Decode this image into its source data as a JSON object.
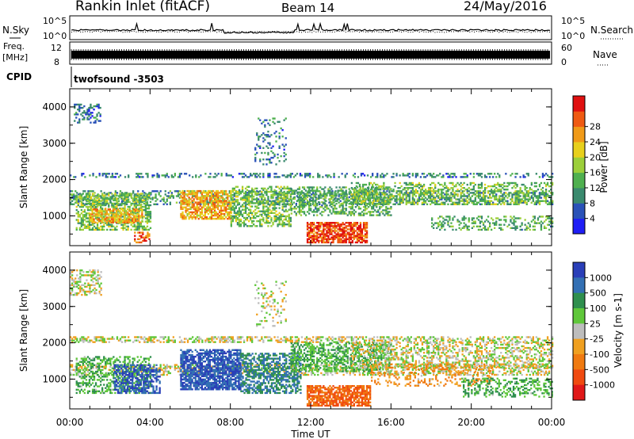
{
  "header": {
    "station": "Rankin Inlet (fitACF)",
    "beam": "Beam 14",
    "date": "24/May/2016"
  },
  "strip_labels": {
    "nsky": "N.Sky",
    "freq_top": "Freq.",
    "freq_unit": "[MHz]",
    "cpid": "CPID",
    "nsearch": "N.Search",
    "nave": "Nave"
  },
  "strip_ticks": {
    "nsky_hi": "10^5",
    "nsky_lo": "10^0",
    "freq_hi": "12",
    "freq_lo": "8",
    "nave_hi": "60",
    "nave_lo": "0"
  },
  "cpid_text": "twofsound -3503",
  "panels": [
    {
      "key": "power",
      "ylabel": "Slant Range [km]",
      "cbar_label": "Power [dB]",
      "cbar_ticks": [
        "4",
        "8",
        "12",
        "16",
        "20",
        "24",
        "28"
      ],
      "cbar_colors": [
        "#1f1ef5",
        "#2a52b8",
        "#3a8a6e",
        "#4fb04f",
        "#9ccf3a",
        "#e8d01c",
        "#f09a18",
        "#ef5a12",
        "#e01010"
      ]
    },
    {
      "key": "velocity",
      "ylabel": "Slant Range [km]",
      "cbar_label": "Velocity [m s-1]",
      "cbar_ticks": [
        "1000",
        "500",
        "100",
        "25",
        "-25",
        "-100",
        "-500",
        "-1000"
      ],
      "cbar_colors": [
        "#2a3fb8",
        "#3370b4",
        "#2f8f4e",
        "#5fc73a",
        "#bdbdbd",
        "#f0a020",
        "#f07a10",
        "#f04a10",
        "#e01818"
      ]
    }
  ],
  "chart_data": {
    "type": "heatmap",
    "title": "Rankin Inlet (fitACF) Beam 14 24/May/2016",
    "xlabel": "Time UT",
    "ylabel": "Slant Range [km]",
    "x_ticks": [
      "00:00",
      "04:00",
      "08:00",
      "12:00",
      "16:00",
      "20:00",
      "00:00"
    ],
    "y_ticks": [
      "1000",
      "2000",
      "3000",
      "4000"
    ],
    "xlim": [
      0,
      24
    ],
    "ylim": [
      180,
      4500
    ],
    "power_regions": [
      {
        "t0": 0.2,
        "t1": 1.5,
        "r0": 3550,
        "r1": 4050,
        "level": 7,
        "density": 0.4
      },
      {
        "t0": 0.0,
        "t1": 24.0,
        "r0": 2050,
        "r1": 2150,
        "level": 8,
        "density": 0.35
      },
      {
        "t0": 0.0,
        "t1": 24.0,
        "r0": 1300,
        "r1": 1700,
        "level": 10,
        "density": 0.35
      },
      {
        "t0": 0.3,
        "t1": 4.0,
        "r0": 600,
        "r1": 1600,
        "level": 14,
        "density": 0.55
      },
      {
        "t0": 1.0,
        "t1": 3.6,
        "r0": 800,
        "r1": 1200,
        "level": 22,
        "density": 0.6
      },
      {
        "t0": 5.5,
        "t1": 8.0,
        "r0": 900,
        "r1": 1700,
        "level": 22,
        "density": 0.7
      },
      {
        "t0": 8.0,
        "t1": 11.0,
        "r0": 700,
        "r1": 1800,
        "level": 14,
        "density": 0.5
      },
      {
        "t0": 11.0,
        "t1": 16.0,
        "r0": 1000,
        "r1": 1800,
        "level": 12,
        "density": 0.45
      },
      {
        "t0": 11.8,
        "t1": 14.8,
        "r0": 250,
        "r1": 800,
        "level": 28,
        "density": 0.75
      },
      {
        "t0": 14.0,
        "t1": 24.0,
        "r0": 1300,
        "r1": 1900,
        "level": 14,
        "density": 0.4
      },
      {
        "t0": 18.0,
        "t1": 24.0,
        "r0": 600,
        "r1": 1000,
        "level": 12,
        "density": 0.35
      },
      {
        "t0": 9.2,
        "t1": 10.8,
        "r0": 2400,
        "r1": 3700,
        "level": 8,
        "density": 0.15
      },
      {
        "t0": 3.2,
        "t1": 4.0,
        "r0": 250,
        "r1": 550,
        "level": 26,
        "density": 0.5
      }
    ],
    "velocity_regions": [
      {
        "t0": 0.0,
        "t1": 24.0,
        "r0": 2000,
        "r1": 2150,
        "level": 0,
        "density": 0.45
      },
      {
        "t0": 0.0,
        "t1": 24.0,
        "r0": 1100,
        "r1": 1400,
        "level": 0,
        "density": 0.4
      },
      {
        "t0": 0.0,
        "t1": 1.6,
        "r0": 3300,
        "r1": 4000,
        "level": 0,
        "density": 0.4
      },
      {
        "t0": 0.3,
        "t1": 4.0,
        "r0": 600,
        "r1": 1600,
        "level": 100,
        "density": 0.45
      },
      {
        "t0": 2.2,
        "t1": 4.5,
        "r0": 600,
        "r1": 1400,
        "level": 1000,
        "density": 0.55
      },
      {
        "t0": 5.5,
        "t1": 8.5,
        "r0": 700,
        "r1": 1800,
        "level": 1000,
        "density": 0.75
      },
      {
        "t0": 8.5,
        "t1": 11.5,
        "r0": 600,
        "r1": 1700,
        "level": 500,
        "density": 0.55
      },
      {
        "t0": 11.0,
        "t1": 16.0,
        "r0": 1200,
        "r1": 2000,
        "level": 100,
        "density": 0.5
      },
      {
        "t0": 11.8,
        "t1": 15.0,
        "r0": 250,
        "r1": 800,
        "level": -500,
        "density": 0.75
      },
      {
        "t0": 14.0,
        "t1": 24.0,
        "r0": 1300,
        "r1": 2000,
        "level": 0,
        "density": 0.4
      },
      {
        "t0": 15.0,
        "t1": 21.0,
        "r0": 800,
        "r1": 1400,
        "level": -100,
        "density": 0.25
      },
      {
        "t0": 19.5,
        "t1": 24.0,
        "r0": 500,
        "r1": 1000,
        "level": 100,
        "density": 0.35
      },
      {
        "t0": 9.2,
        "t1": 10.8,
        "r0": 2400,
        "r1": 3700,
        "level": 0,
        "density": 0.15
      }
    ]
  }
}
